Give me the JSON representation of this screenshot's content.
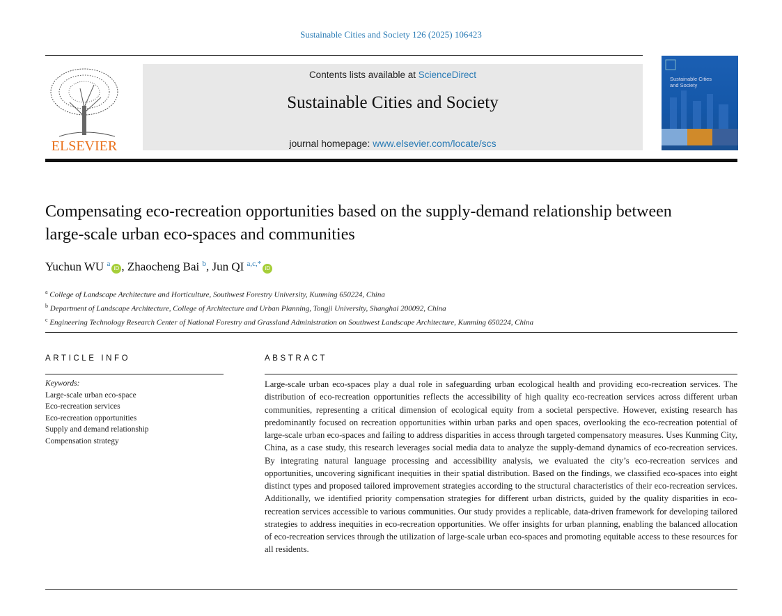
{
  "citation": "Sustainable Cities and Society 126 (2025) 106423",
  "header": {
    "contents_prefix": "Contents lists available at ",
    "contents_link": "ScienceDirect",
    "journal_title": "Sustainable Cities and Society",
    "homepage_prefix": "journal homepage: ",
    "homepage_link": "www.elsevier.com/locate/scs",
    "publisher_logo": "ELSEVIER",
    "cover_title": "Sustainable Cities and Society"
  },
  "article": {
    "title": "Compensating eco-recreation opportunities based on the supply-demand relationship between large-scale urban eco-spaces and communities",
    "authors": [
      {
        "name": "Yuchun WU",
        "sup": "a",
        "orcid": true
      },
      {
        "name": "Zhaocheng Bai",
        "sup": "b",
        "orcid": false
      },
      {
        "name": "Jun QI",
        "sup": "a,c,*",
        "orcid": true
      }
    ],
    "orcid_label": "iD",
    "affiliations": [
      {
        "key": "a",
        "text": "College of Landscape Architecture and Horticulture, Southwest Forestry University, Kunming 650224, China"
      },
      {
        "key": "b",
        "text": "Department of Landscape Architecture, College of Architecture and Urban Planning, Tongji University, Shanghai 200092, China"
      },
      {
        "key": "c",
        "text": "Engineering Technology Research Center of National Forestry and Grassland Administration on Southwest Landscape Architecture, Kunming 650224, China"
      }
    ]
  },
  "article_info": {
    "heading": "ARTICLE INFO",
    "keywords_label": "Keywords:",
    "keywords": [
      "Large-scale urban eco-space",
      "Eco-recreation services",
      "Eco-recreation opportunities",
      "Supply and demand relationship",
      "Compensation strategy"
    ]
  },
  "abstract": {
    "heading": "ABSTRACT",
    "text": "Large-scale urban eco-spaces play a dual role in safeguarding urban ecological health and providing eco-recreation services. The distribution of eco-recreation opportunities reflects the accessibility of high quality eco-recreation services across different urban communities, representing a critical dimension of ecological equity from a societal perspective. However, existing research has predominantly focused on recreation opportunities within urban parks and open spaces, overlooking the eco-recreation potential of large-scale urban eco-spaces and failing to address disparities in access through targeted compensatory measures. Uses Kunming City, China, as a case study, this research leverages social media data to analyze the supply-demand dynamics of eco-recreation services. By integrating natural language processing and accessibility analysis, we evaluated the city’s eco-recreation services and opportunities, uncovering significant inequities in their spatial distribution. Based on the findings, we classified eco-spaces into eight distinct types and proposed tailored improvement strategies according to the structural characteristics of their eco-recreation services. Additionally, we identified priority compensation strategies for different urban districts, guided by the quality disparities in eco-recreation services accessible to various communities. Our study provides a replicable, data-driven framework for developing tailored strategies to address inequities in eco-recreation opportunities. We offer insights for urban planning, enabling the balanced allocation of eco-recreation services through the utilization of large-scale urban eco-spaces and promoting equitable access to these resources for all residents."
  },
  "colors": {
    "link": "#2a7bb5",
    "orcid": "#a6ce39",
    "elsevier": "#e9711c",
    "banner": "#e8e8e8"
  }
}
